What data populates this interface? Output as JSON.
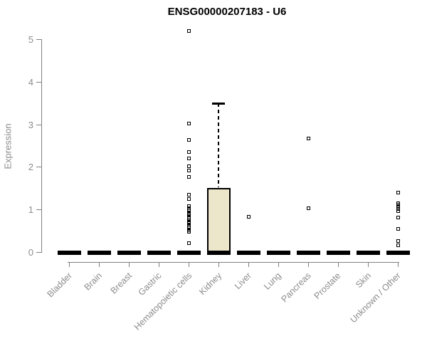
{
  "page": {
    "background": "#ffffff"
  },
  "chart_data": {
    "type": "boxplot",
    "title": "ENSG00000207183 - U6",
    "ylabel": "Expression",
    "xlabel": "",
    "ylim": [
      0,
      5.3
    ],
    "yticks": [
      0,
      1,
      2,
      3,
      4,
      5
    ],
    "grid": false,
    "legend": "none",
    "categories": [
      "Bladder",
      "Brain",
      "Breast",
      "Gastric",
      "Hematopoietic cells",
      "Kidney",
      "Liver",
      "Lung",
      "Pancreas",
      "Prostate",
      "Skin",
      "Unknown / Other"
    ],
    "boxes": [
      {
        "category": "Bladder",
        "min": 0,
        "q1": 0,
        "median": 0,
        "q3": 0,
        "max": 0,
        "outliers": []
      },
      {
        "category": "Brain",
        "min": 0,
        "q1": 0,
        "median": 0,
        "q3": 0,
        "max": 0,
        "outliers": []
      },
      {
        "category": "Breast",
        "min": 0,
        "q1": 0,
        "median": 0,
        "q3": 0,
        "max": 0,
        "outliers": []
      },
      {
        "category": "Gastric",
        "min": 0,
        "q1": 0,
        "median": 0,
        "q3": 0,
        "max": 0,
        "outliers": []
      },
      {
        "category": "Hematopoietic cells",
        "min": 0,
        "q1": 0,
        "median": 0,
        "q3": 0,
        "max": 0,
        "outliers": [
          5.2,
          3.02,
          2.64,
          2.36,
          2.2,
          2.03,
          1.93,
          1.77,
          1.36,
          1.25,
          1.08,
          1.04,
          1.0,
          0.96,
          0.92,
          0.88,
          0.84,
          0.8,
          0.76,
          0.72,
          0.68,
          0.64,
          0.6,
          0.56,
          0.52,
          0.49,
          0.22
        ]
      },
      {
        "category": "Kidney",
        "min": 0,
        "q1": 0,
        "median": 0,
        "q3": 1.52,
        "max": 3.5,
        "outliers": []
      },
      {
        "category": "Liver",
        "min": 0,
        "q1": 0,
        "median": 0,
        "q3": 0,
        "max": 0,
        "outliers": [
          0.84
        ]
      },
      {
        "category": "Lung",
        "min": 0,
        "q1": 0,
        "median": 0,
        "q3": 0,
        "max": 0,
        "outliers": []
      },
      {
        "category": "Pancreas",
        "min": 0,
        "q1": 0,
        "median": 0,
        "q3": 0,
        "max": 0,
        "outliers": [
          2.68,
          1.03
        ]
      },
      {
        "category": "Prostate",
        "min": 0,
        "q1": 0,
        "median": 0,
        "q3": 0,
        "max": 0,
        "outliers": []
      },
      {
        "category": "Skin",
        "min": 0,
        "q1": 0,
        "median": 0,
        "q3": 0,
        "max": 0,
        "outliers": []
      },
      {
        "category": "Unknown / Other",
        "min": 0,
        "q1": 0,
        "median": 0,
        "q3": 0,
        "max": 0,
        "outliers": [
          1.41,
          1.16,
          1.11,
          1.06,
          1.01,
          0.96,
          0.81,
          0.55,
          0.27,
          0.17
        ]
      }
    ],
    "colors": {
      "box_fill": "#ECE7CB",
      "box_border": "#000000",
      "median": "#000000",
      "axis": "#808080",
      "tick_text": "#8c8c8c",
      "title_text": "#000000",
      "background": "#ffffff"
    }
  }
}
